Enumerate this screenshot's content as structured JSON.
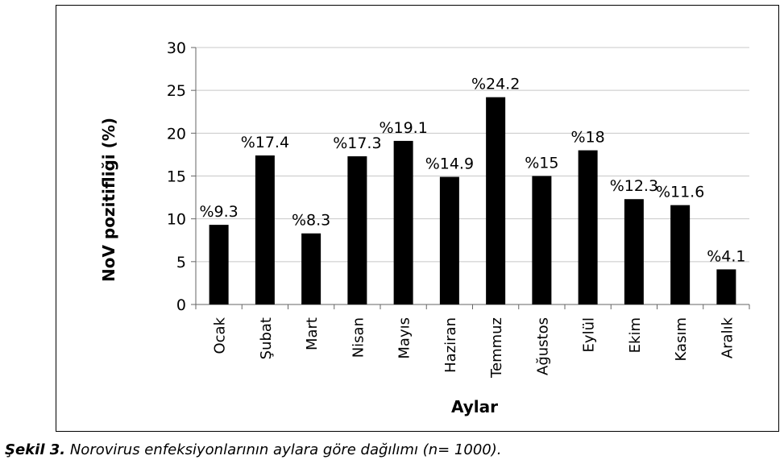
{
  "chart_data": {
    "type": "bar",
    "categories": [
      "Ocak",
      "Şubat",
      "Mart",
      "Nisan",
      "Mayıs",
      "Haziran",
      "Temmuz",
      "Ağustos",
      "Eylül",
      "Ekim",
      "Kasım",
      "Aralık"
    ],
    "values": [
      9.3,
      17.4,
      8.3,
      17.3,
      19.1,
      14.9,
      24.2,
      15,
      18,
      12.3,
      11.6,
      4.1
    ],
    "data_labels": [
      "%9.3",
      "%17.4",
      "%8.3",
      "%17.3",
      "%19.1",
      "%14.9",
      "%24.2",
      "%15",
      "%18",
      "%12.3",
      "%11.6",
      "%4.1"
    ],
    "xlabel": "Aylar",
    "ylabel": "NoV pozitifliği (%)",
    "ylim": [
      0,
      30
    ],
    "yticks": [
      0,
      5,
      10,
      15,
      20,
      25,
      30
    ],
    "grid": true,
    "bar_color": "#000000",
    "grid_color": "#c8c8c8"
  },
  "caption": {
    "lead": "Şekil 3.",
    "text": " Norovirus enfeksiyonlarının aylara göre dağılımı (n= 1000)."
  }
}
